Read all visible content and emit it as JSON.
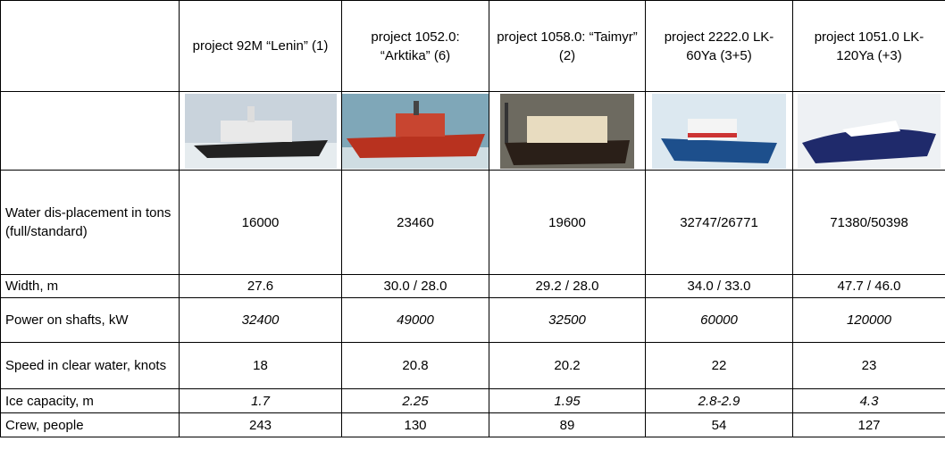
{
  "table": {
    "header": [
      "project 92M “Lenin” (1)",
      "project 1052.0: “Arktika” (6)",
      "project 1058.0: “Taimyr” (2)",
      "project 2222.0 LK-60Ya (3+5)",
      "project 1051.0 LK-120Ya (+3)"
    ],
    "rows": [
      {
        "label": "Water dis-placement in tons (full/standard)",
        "cells": [
          "16000",
          "23460",
          "19600",
          "32747/26771",
          "71380/50398"
        ]
      },
      {
        "label": "Width, m",
        "cells": [
          "27.6",
          "30.0 / 28.0",
          "29.2 / 28.0",
          "34.0 / 33.0",
          "47.7 / 46.0"
        ]
      },
      {
        "label": "Power on shafts, kW",
        "cells": [
          "32400",
          "49000",
          "32500",
          "60000",
          "120000"
        ],
        "italic": true
      },
      {
        "label": "Speed in clear water, knots",
        "cells": [
          "18",
          "20.8",
          "20.2",
          "22",
          "23"
        ]
      },
      {
        "label": "Ice capacity, m",
        "cells": [
          "1.7",
          "2.25",
          "1.95",
          "2.8-2.9",
          "4.3"
        ],
        "italic": true
      },
      {
        "label": "Crew, people",
        "cells": [
          "243",
          "130",
          "89",
          "54",
          "127"
        ]
      }
    ]
  }
}
